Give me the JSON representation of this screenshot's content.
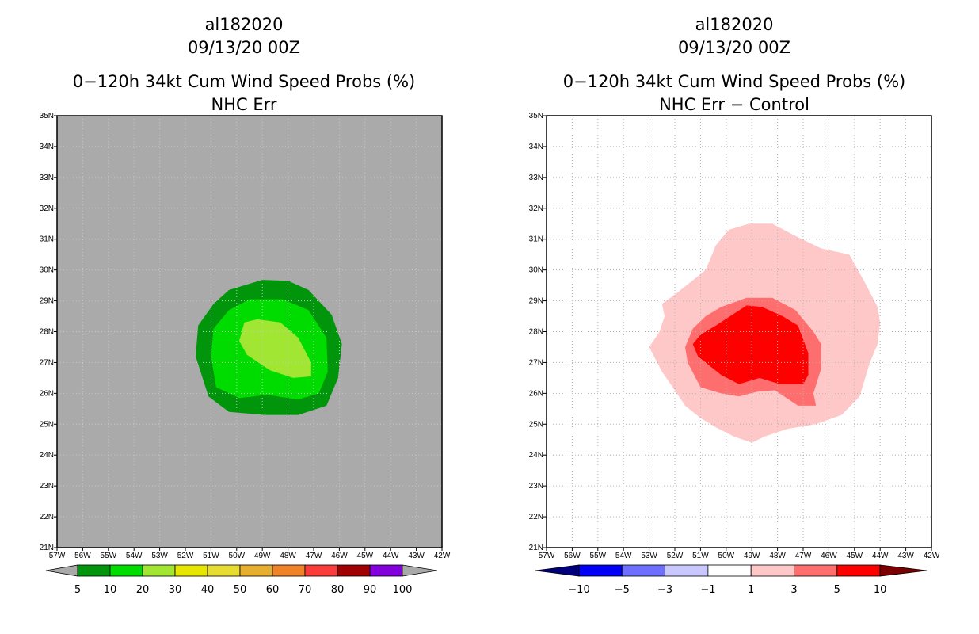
{
  "chart_data": [
    {
      "type": "filled-contour-map",
      "storm_id": "al182020",
      "date_label": "09/13/20 00Z",
      "title": "0−120h 34kt Cum Wind Speed Probs (%)",
      "subtitle": "NHC Err",
      "lat_ticks": [
        "21N",
        "22N",
        "23N",
        "24N",
        "25N",
        "26N",
        "27N",
        "28N",
        "29N",
        "30N",
        "31N",
        "32N",
        "33N",
        "34N",
        "35N"
      ],
      "lon_ticks": [
        "57W",
        "56W",
        "55W",
        "54W",
        "53W",
        "52W",
        "51W",
        "50W",
        "49W",
        "48W",
        "47W",
        "46W",
        "45W",
        "44W",
        "43W",
        "42W"
      ],
      "lat_range": [
        21,
        35
      ],
      "lon_range": [
        -57,
        -42
      ],
      "background_color": "#aaaaaa",
      "colorbar": {
        "labels": [
          "5",
          "10",
          "20",
          "30",
          "40",
          "50",
          "60",
          "70",
          "80",
          "90",
          "100"
        ],
        "colors": [
          "#a9a9a9",
          "#00950a",
          "#00dc00",
          "#a0e632",
          "#e6e600",
          "#e6dc32",
          "#e6af2d",
          "#f08228",
          "#fa3c3c",
          "#a00000",
          "#8200dc",
          "#a9a9a9"
        ]
      },
      "contours": [
        {
          "level": "5-10",
          "color": "#00950a",
          "polygon": [
            [
              -50.9,
              28.9
            ],
            [
              -50.3,
              29.35
            ],
            [
              -49.0,
              29.68
            ],
            [
              -48.0,
              29.65
            ],
            [
              -47.2,
              29.35
            ],
            [
              -46.3,
              28.55
            ],
            [
              -45.9,
              27.6
            ],
            [
              -46.05,
              26.5
            ],
            [
              -46.5,
              25.6
            ],
            [
              -47.6,
              25.3
            ],
            [
              -48.9,
              25.3
            ],
            [
              -50.3,
              25.4
            ],
            [
              -51.1,
              25.9
            ],
            [
              -51.6,
              27.2
            ],
            [
              -51.5,
              28.2
            ]
          ]
        },
        {
          "level": "10-20",
          "color": "#00dc00",
          "polygon": [
            [
              -50.3,
              28.7
            ],
            [
              -49.5,
              29.05
            ],
            [
              -48.2,
              29.05
            ],
            [
              -47.2,
              28.7
            ],
            [
              -46.5,
              27.8
            ],
            [
              -46.45,
              26.7
            ],
            [
              -46.8,
              26.0
            ],
            [
              -47.6,
              25.8
            ],
            [
              -48.8,
              25.95
            ],
            [
              -49.9,
              25.85
            ],
            [
              -50.8,
              26.2
            ],
            [
              -51.0,
              27.2
            ],
            [
              -50.9,
              28.1
            ]
          ]
        },
        {
          "level": "20-30",
          "color": "#a0e632",
          "polygon": [
            [
              -49.7,
              28.3
            ],
            [
              -49.2,
              28.4
            ],
            [
              -48.3,
              28.3
            ],
            [
              -47.6,
              27.8
            ],
            [
              -47.1,
              27.0
            ],
            [
              -47.1,
              26.55
            ],
            [
              -47.8,
              26.5
            ],
            [
              -48.7,
              26.75
            ],
            [
              -49.6,
              27.25
            ],
            [
              -49.9,
              27.7
            ]
          ]
        }
      ]
    },
    {
      "type": "filled-contour-map",
      "storm_id": "al182020",
      "date_label": "09/13/20 00Z",
      "title": "0−120h 34kt Cum Wind Speed Probs (%)",
      "subtitle": "NHC Err − Control",
      "lat_ticks": [
        "21N",
        "22N",
        "23N",
        "24N",
        "25N",
        "26N",
        "27N",
        "28N",
        "29N",
        "30N",
        "31N",
        "32N",
        "33N",
        "34N",
        "35N"
      ],
      "lon_ticks": [
        "57W",
        "56W",
        "55W",
        "54W",
        "53W",
        "52W",
        "51W",
        "50W",
        "49W",
        "48W",
        "47W",
        "46W",
        "45W",
        "44W",
        "43W",
        "42W"
      ],
      "lat_range": [
        21,
        35
      ],
      "lon_range": [
        -57,
        -42
      ],
      "background_color": "#ffffff",
      "colorbar": {
        "labels": [
          "−10",
          "−5",
          "−3",
          "−1",
          "1",
          "3",
          "5",
          "10"
        ],
        "colors": [
          "#00007d",
          "#0000f5",
          "#6e6eff",
          "#c8c8ff",
          "#ffffff",
          "#ffc8c8",
          "#ff6e6e",
          "#ff0000",
          "#7d0000"
        ]
      },
      "contours": [
        {
          "level": "1-3",
          "color": "#ffc8c8",
          "polygon": [
            [
              -50.8,
              30.0
            ],
            [
              -50.4,
              30.8
            ],
            [
              -49.9,
              31.3
            ],
            [
              -49.1,
              31.5
            ],
            [
              -48.2,
              31.5
            ],
            [
              -47.3,
              31.1
            ],
            [
              -46.3,
              30.7
            ],
            [
              -45.2,
              30.5
            ],
            [
              -44.6,
              29.6
            ],
            [
              -44.1,
              28.8
            ],
            [
              -44.0,
              28.3
            ],
            [
              -44.1,
              27.6
            ],
            [
              -44.4,
              27.0
            ],
            [
              -44.8,
              25.9
            ],
            [
              -45.5,
              25.3
            ],
            [
              -46.5,
              25.0
            ],
            [
              -47.6,
              24.85
            ],
            [
              -48.5,
              24.6
            ],
            [
              -49.0,
              24.4
            ],
            [
              -49.7,
              24.6
            ],
            [
              -50.4,
              24.9
            ],
            [
              -51.0,
              25.2
            ],
            [
              -51.6,
              25.6
            ],
            [
              -52.0,
              26.1
            ],
            [
              -52.5,
              26.7
            ],
            [
              -53.0,
              27.5
            ],
            [
              -52.6,
              28.0
            ],
            [
              -52.4,
              28.5
            ],
            [
              -52.5,
              28.9
            ],
            [
              -52.0,
              29.2
            ],
            [
              -51.4,
              29.6
            ]
          ]
        },
        {
          "level": "3-5",
          "color": "#ff6e6e",
          "polygon": [
            [
              -50.2,
              28.8
            ],
            [
              -49.2,
              29.1
            ],
            [
              -48.2,
              29.1
            ],
            [
              -47.3,
              28.7
            ],
            [
              -46.6,
              28.0
            ],
            [
              -46.3,
              27.6
            ],
            [
              -46.3,
              26.8
            ],
            [
              -46.6,
              26.0
            ],
            [
              -46.5,
              25.6
            ],
            [
              -47.2,
              25.6
            ],
            [
              -48.1,
              26.1
            ],
            [
              -48.8,
              26.05
            ],
            [
              -49.5,
              25.9
            ],
            [
              -50.2,
              26.0
            ],
            [
              -51.0,
              26.2
            ],
            [
              -51.5,
              27.0
            ],
            [
              -51.6,
              27.5
            ],
            [
              -51.3,
              28.1
            ],
            [
              -50.8,
              28.5
            ]
          ]
        },
        {
          "level": "5-10",
          "color": "#ff0000",
          "polygon": [
            [
              -50.4,
              28.2
            ],
            [
              -49.2,
              28.85
            ],
            [
              -48.6,
              28.8
            ],
            [
              -47.8,
              28.5
            ],
            [
              -47.2,
              28.2
            ],
            [
              -46.8,
              27.3
            ],
            [
              -46.8,
              26.6
            ],
            [
              -47.0,
              26.3
            ],
            [
              -47.9,
              26.3
            ],
            [
              -48.7,
              26.5
            ],
            [
              -49.5,
              26.3
            ],
            [
              -50.2,
              26.6
            ],
            [
              -51.1,
              27.2
            ],
            [
              -51.3,
              27.6
            ],
            [
              -51.0,
              27.9
            ]
          ]
        }
      ]
    }
  ]
}
